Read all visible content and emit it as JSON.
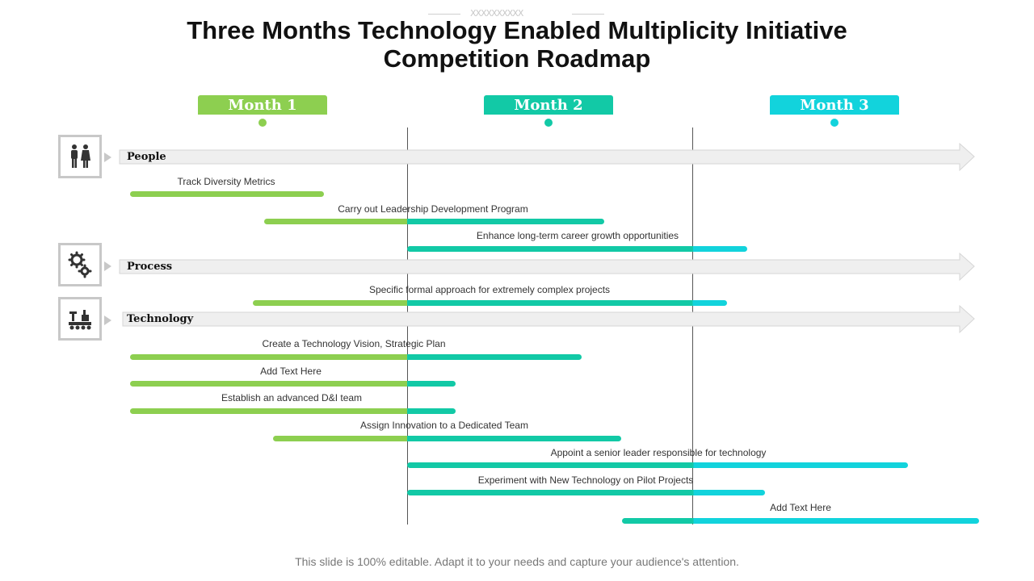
{
  "header": {
    "decoration": "XXXXXXXXXX",
    "title_line1": "Three Months Technology Enabled Multiplicity Initiative",
    "title_line2": "Competition Roadmap"
  },
  "months": [
    {
      "label": "Month 1",
      "color": "#8dcf50"
    },
    {
      "label": "Month 2",
      "color": "#12c9a6"
    },
    {
      "label": "Month 3",
      "color": "#12d3dc"
    }
  ],
  "sections": [
    {
      "label": "People",
      "icon": "people-icon"
    },
    {
      "label": "Process",
      "icon": "gears-icon"
    },
    {
      "label": "Technology",
      "icon": "factory-icon"
    }
  ],
  "tasks": [
    {
      "label": "Track Diversity Metrics",
      "start": 0.03,
      "end": 0.71
    },
    {
      "label": "Carry out Leadership Development Program",
      "start": 0.5,
      "end": 1.69
    },
    {
      "label": "Enhance long-term career growth opportunities",
      "start": 1.0,
      "end": 2.19
    },
    {
      "label": "Specific formal approach for extremely complex projects",
      "start": 0.46,
      "end": 2.12
    },
    {
      "label": "Create a Technology Vision, Strategic Plan",
      "start": 0.03,
      "end": 1.61
    },
    {
      "label": "Add Text Here",
      "start": 0.03,
      "end": 1.17
    },
    {
      "label": "Establish an advanced D&I team",
      "start": 0.03,
      "end": 1.17
    },
    {
      "label": "Assign Innovation to a Dedicated Team",
      "start": 0.53,
      "end": 1.75
    },
    {
      "label": "Appoint a senior leader responsible for technology",
      "start": 1.0,
      "end": 2.75
    },
    {
      "label": "Experiment with New Technology on Pilot Projects",
      "start": 1.0,
      "end": 2.25
    },
    {
      "label": "Add Text Here",
      "start": 1.75,
      "end": 3.0
    }
  ],
  "footer": "This slide is 100% editable. Adapt it to your needs and capture your audience's attention."
}
